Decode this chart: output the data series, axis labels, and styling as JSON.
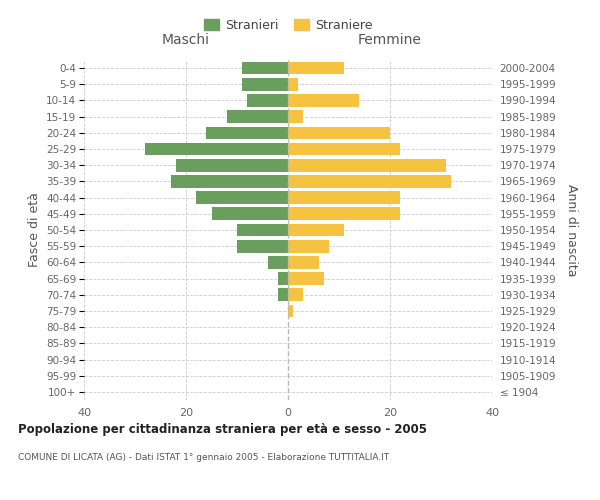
{
  "age_groups": [
    "100+",
    "95-99",
    "90-94",
    "85-89",
    "80-84",
    "75-79",
    "70-74",
    "65-69",
    "60-64",
    "55-59",
    "50-54",
    "45-49",
    "40-44",
    "35-39",
    "30-34",
    "25-29",
    "20-24",
    "15-19",
    "10-14",
    "5-9",
    "0-4"
  ],
  "birth_years": [
    "≤ 1904",
    "1905-1909",
    "1910-1914",
    "1915-1919",
    "1920-1924",
    "1925-1929",
    "1930-1934",
    "1935-1939",
    "1940-1944",
    "1945-1949",
    "1950-1954",
    "1955-1959",
    "1960-1964",
    "1965-1969",
    "1970-1974",
    "1975-1979",
    "1980-1984",
    "1985-1989",
    "1990-1994",
    "1995-1999",
    "2000-2004"
  ],
  "maschi": [
    0,
    0,
    0,
    0,
    0,
    0,
    2,
    2,
    4,
    10,
    10,
    15,
    18,
    23,
    22,
    28,
    16,
    12,
    8,
    9,
    9
  ],
  "femmine": [
    0,
    0,
    0,
    0,
    0,
    1,
    3,
    7,
    6,
    8,
    11,
    22,
    22,
    32,
    31,
    22,
    20,
    3,
    14,
    2,
    11
  ],
  "maschi_color": "#6a9e5f",
  "femmine_color": "#f5c242",
  "background_color": "#ffffff",
  "grid_color": "#cccccc",
  "title": "Popolazione per cittadinanza straniera per età e sesso - 2005",
  "subtitle": "COMUNE DI LICATA (AG) - Dati ISTAT 1° gennaio 2005 - Elaborazione TUTTITALIA.IT",
  "xlabel_left": "Maschi",
  "xlabel_right": "Femmine",
  "ylabel_left": "Fasce di età",
  "ylabel_right": "Anni di nascita",
  "legend_stranieri": "Stranieri",
  "legend_straniere": "Straniere",
  "xlim": 40
}
